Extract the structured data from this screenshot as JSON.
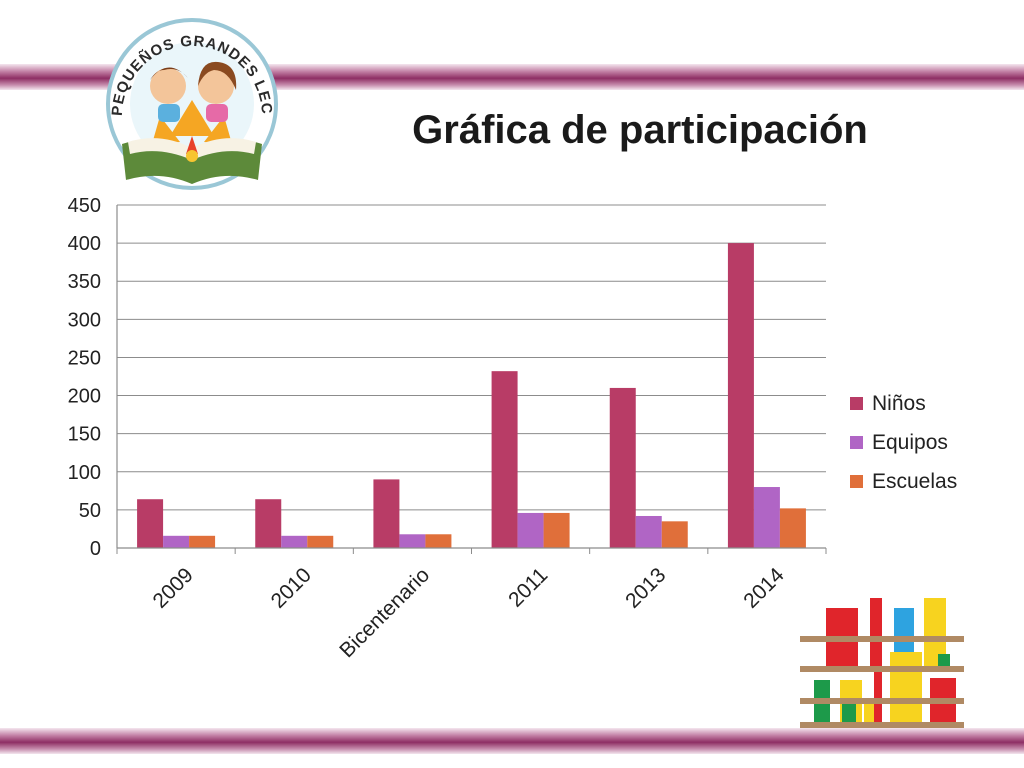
{
  "slide": {
    "title": "Gráfica de participación",
    "logo_text": "PEQUEÑOS GRANDES LECTORES"
  },
  "colors": {
    "band": "#8e2f64",
    "ninos": "#b83c66",
    "equipos": "#b065c5",
    "escuelas": "#e06f3a",
    "grid": "#8c8c8c"
  },
  "chart_data": {
    "type": "bar",
    "title": "Gráfica de participación",
    "categories": [
      "2009",
      "2010",
      "Bicentenario",
      "2011",
      "2013",
      "2014"
    ],
    "series": [
      {
        "name": "Niños",
        "color": "#b83c66",
        "values": [
          64,
          64,
          90,
          232,
          210,
          400
        ]
      },
      {
        "name": "Equipos",
        "color": "#b065c5",
        "values": [
          16,
          16,
          18,
          46,
          42,
          80
        ]
      },
      {
        "name": "Escuelas",
        "color": "#e06f3a",
        "values": [
          16,
          16,
          18,
          46,
          35,
          52
        ]
      }
    ],
    "ylim": [
      0,
      450
    ],
    "yticks": [
      "0",
      "50",
      "100",
      "150",
      "200",
      "250",
      "300",
      "350",
      "400",
      "450"
    ],
    "grid": true,
    "legend_position": "right"
  }
}
